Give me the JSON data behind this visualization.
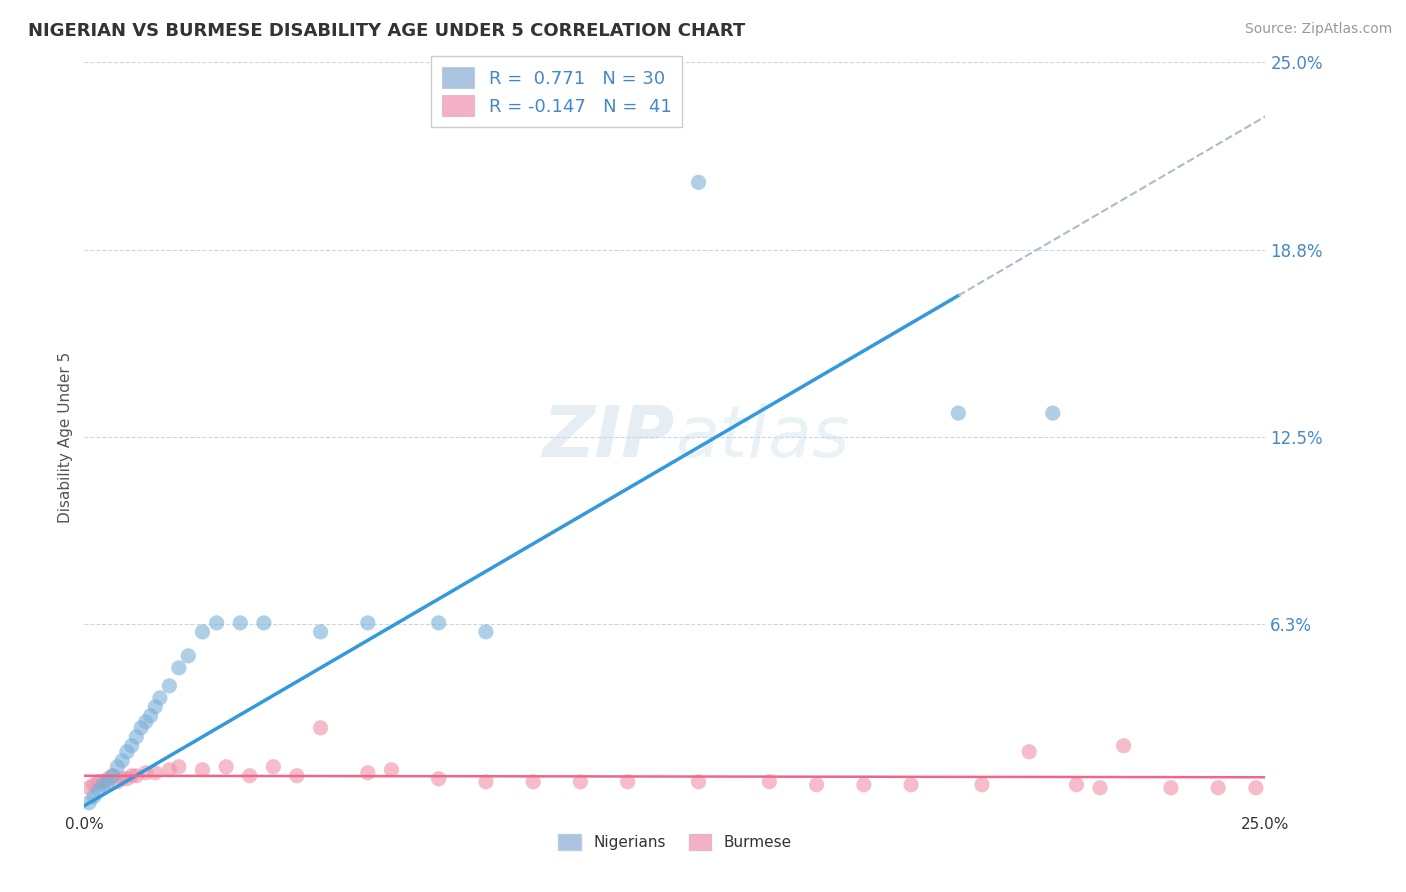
{
  "title": "NIGERIAN VS BURMESE DISABILITY AGE UNDER 5 CORRELATION CHART",
  "source": "Source: ZipAtlas.com",
  "ylabel": "Disability Age Under 5",
  "xlim": [
    0.0,
    0.25
  ],
  "ylim": [
    0.0,
    0.25
  ],
  "nigerian_R": 0.771,
  "nigerian_N": 30,
  "burmese_R": -0.147,
  "burmese_N": 41,
  "nigerian_fill_color": "#aac4e0",
  "burmese_fill_color": "#f4b0c4",
  "nigerian_scatter_color": "#7ab0d8",
  "burmese_scatter_color": "#f090a8",
  "nigerian_line_color": "#3399dd",
  "burmese_line_color": "#ee6688",
  "legend_text_color": "#4488cc",
  "legend_label_color": "#333355",
  "grid_color": "#c8d8e8",
  "dashed_ext_color": "#aabbcc",
  "background_color": "#ffffff",
  "nigerian_points_x": [
    0.001,
    0.002,
    0.003,
    0.004,
    0.005,
    0.006,
    0.007,
    0.008,
    0.009,
    0.01,
    0.011,
    0.012,
    0.013,
    0.014,
    0.015,
    0.016,
    0.018,
    0.02,
    0.022,
    0.025,
    0.028,
    0.033,
    0.038,
    0.05,
    0.06,
    0.075,
    0.085,
    0.13,
    0.185,
    0.205
  ],
  "nigerian_points_y": [
    0.003,
    0.005,
    0.007,
    0.009,
    0.01,
    0.012,
    0.015,
    0.017,
    0.02,
    0.022,
    0.025,
    0.028,
    0.03,
    0.032,
    0.035,
    0.038,
    0.042,
    0.048,
    0.052,
    0.06,
    0.063,
    0.063,
    0.063,
    0.06,
    0.063,
    0.063,
    0.06,
    0.21,
    0.133,
    0.133
  ],
  "burmese_points_x": [
    0.001,
    0.002,
    0.003,
    0.004,
    0.005,
    0.006,
    0.007,
    0.008,
    0.009,
    0.01,
    0.011,
    0.013,
    0.015,
    0.018,
    0.02,
    0.025,
    0.03,
    0.035,
    0.04,
    0.045,
    0.05,
    0.06,
    0.065,
    0.075,
    0.085,
    0.095,
    0.105,
    0.115,
    0.13,
    0.145,
    0.155,
    0.165,
    0.175,
    0.19,
    0.2,
    0.21,
    0.215,
    0.22,
    0.23,
    0.24,
    0.248
  ],
  "burmese_points_y": [
    0.008,
    0.009,
    0.01,
    0.01,
    0.011,
    0.012,
    0.01,
    0.011,
    0.011,
    0.012,
    0.012,
    0.013,
    0.013,
    0.014,
    0.015,
    0.014,
    0.015,
    0.012,
    0.015,
    0.012,
    0.028,
    0.013,
    0.014,
    0.011,
    0.01,
    0.01,
    0.01,
    0.01,
    0.01,
    0.01,
    0.009,
    0.009,
    0.009,
    0.009,
    0.02,
    0.009,
    0.008,
    0.022,
    0.008,
    0.008,
    0.008
  ],
  "line_slope": 0.92,
  "line_intercept": 0.002,
  "line_solid_end": 0.185,
  "bur_line_slope": -0.002,
  "bur_line_intercept": 0.012
}
